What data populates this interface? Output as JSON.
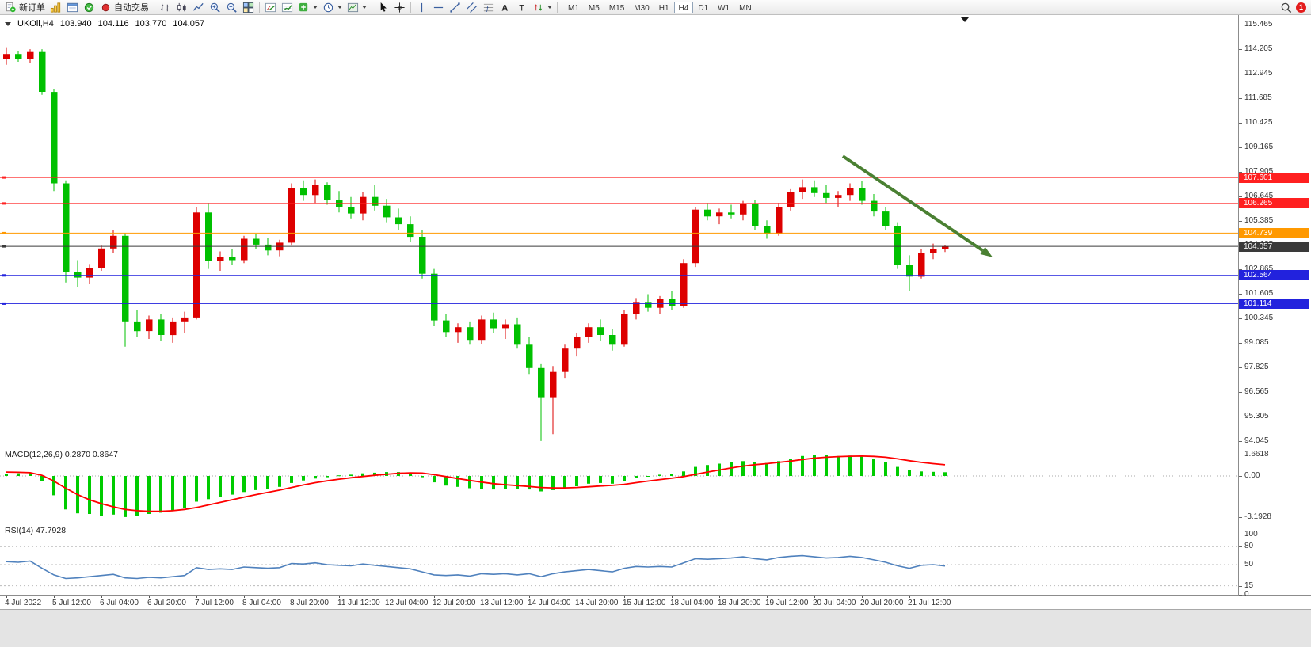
{
  "toolbar": {
    "new_order_label": "新订单",
    "auto_trading_label": "自动交易",
    "timeframes": [
      "M1",
      "M5",
      "M15",
      "M30",
      "H1",
      "H4",
      "D1",
      "W1",
      "MN"
    ],
    "active_timeframe": "H4",
    "notification_count": "1"
  },
  "chart": {
    "symbol_period": "UKOil,H4",
    "open": "103.940",
    "high": "104.116",
    "low": "103.770",
    "close": "104.057"
  },
  "chart_data": {
    "type": "candlestick",
    "title": "UKOil,H4",
    "colors": {
      "bull": "#dd0000",
      "bear": "#00c000",
      "macd_histogram": "#00cc00",
      "macd_signal": "#ff0000",
      "rsi_line": "#4f81bd"
    },
    "price_axis": {
      "min": 94.045,
      "max": 115.465,
      "labels": [
        "115.465",
        "114.205",
        "112.945",
        "111.685",
        "110.425",
        "109.165",
        "107.905",
        "106.645",
        "105.385",
        "104.125",
        "102.865",
        "101.605",
        "100.345",
        "99.085",
        "97.825",
        "96.565",
        "95.305",
        "94.045"
      ]
    },
    "time_labels": [
      "4 Jul 2022",
      "5 Jul 12:00",
      "6 Jul 04:00",
      "6 Jul 20:00",
      "7 Jul 12:00",
      "8 Jul 04:00",
      "8 Jul 20:00",
      "11 Jul 12:00",
      "12 Jul 04:00",
      "12 Jul 20:00",
      "13 Jul 12:00",
      "14 Jul 04:00",
      "14 Jul 20:00",
      "15 Jul 12:00",
      "18 Jul 04:00",
      "18 Jul 20:00",
      "19 Jul 12:00",
      "20 Jul 04:00",
      "20 Jul 20:00",
      "21 Jul 12:00"
    ],
    "candles": [
      [
        113.7,
        114.3,
        113.4,
        113.95
      ],
      [
        113.95,
        114.1,
        113.55,
        113.7
      ],
      [
        113.7,
        114.2,
        113.5,
        114.05
      ],
      [
        114.05,
        114.2,
        111.85,
        112.0
      ],
      [
        112.0,
        112.15,
        106.9,
        107.3
      ],
      [
        107.3,
        107.45,
        102.2,
        102.75
      ],
      [
        102.75,
        103.35,
        101.95,
        102.45
      ],
      [
        102.45,
        103.15,
        102.15,
        102.95
      ],
      [
        102.95,
        104.1,
        102.8,
        103.95
      ],
      [
        103.95,
        104.9,
        103.7,
        104.6
      ],
      [
        104.6,
        104.75,
        98.9,
        100.2
      ],
      [
        100.2,
        100.8,
        99.4,
        99.7
      ],
      [
        99.7,
        100.5,
        99.3,
        100.3
      ],
      [
        100.3,
        100.6,
        99.2,
        99.5
      ],
      [
        99.5,
        100.4,
        99.1,
        100.2
      ],
      [
        100.2,
        100.7,
        99.6,
        100.4
      ],
      [
        100.4,
        106.1,
        100.3,
        105.8
      ],
      [
        105.8,
        106.3,
        102.9,
        103.3
      ],
      [
        103.3,
        103.8,
        102.8,
        103.5
      ],
      [
        103.5,
        103.9,
        103.1,
        103.35
      ],
      [
        103.35,
        104.6,
        103.2,
        104.45
      ],
      [
        104.45,
        104.7,
        103.9,
        104.15
      ],
      [
        104.15,
        104.5,
        103.6,
        103.85
      ],
      [
        103.85,
        104.4,
        103.55,
        104.25
      ],
      [
        104.25,
        107.3,
        104.1,
        107.05
      ],
      [
        107.05,
        107.45,
        106.4,
        106.7
      ],
      [
        106.7,
        107.5,
        106.3,
        107.2
      ],
      [
        107.2,
        107.35,
        106.2,
        106.45
      ],
      [
        106.45,
        106.9,
        105.8,
        106.1
      ],
      [
        106.1,
        106.6,
        105.5,
        105.75
      ],
      [
        105.75,
        106.85,
        105.4,
        106.6
      ],
      [
        106.6,
        107.2,
        105.9,
        106.15
      ],
      [
        106.15,
        106.5,
        105.3,
        105.55
      ],
      [
        105.55,
        106.0,
        104.9,
        105.2
      ],
      [
        105.2,
        105.6,
        104.3,
        104.55
      ],
      [
        104.55,
        104.9,
        102.4,
        102.65
      ],
      [
        102.65,
        102.9,
        99.95,
        100.25
      ],
      [
        100.25,
        100.6,
        99.4,
        99.65
      ],
      [
        99.65,
        100.1,
        99.1,
        99.9
      ],
      [
        99.9,
        100.2,
        99.0,
        99.25
      ],
      [
        99.25,
        100.5,
        99.05,
        100.3
      ],
      [
        100.3,
        100.65,
        99.6,
        99.85
      ],
      [
        99.85,
        100.3,
        99.3,
        100.05
      ],
      [
        100.05,
        100.4,
        98.8,
        99.0
      ],
      [
        99.0,
        99.4,
        97.5,
        97.8
      ],
      [
        97.8,
        98.0,
        94.05,
        96.3
      ],
      [
        96.3,
        97.9,
        94.4,
        97.6
      ],
      [
        97.6,
        99.0,
        97.3,
        98.8
      ],
      [
        98.8,
        99.6,
        98.4,
        99.4
      ],
      [
        99.4,
        100.1,
        99.1,
        99.9
      ],
      [
        99.9,
        100.3,
        99.2,
        99.5
      ],
      [
        99.5,
        99.8,
        98.7,
        99.0
      ],
      [
        99.0,
        100.8,
        98.9,
        100.6
      ],
      [
        100.6,
        101.4,
        100.3,
        101.2
      ],
      [
        101.2,
        101.6,
        100.7,
        100.9
      ],
      [
        100.9,
        101.5,
        100.6,
        101.35
      ],
      [
        101.35,
        101.75,
        100.8,
        101.0
      ],
      [
        101.0,
        103.4,
        100.9,
        103.2
      ],
      [
        103.2,
        106.1,
        103.0,
        105.95
      ],
      [
        105.95,
        106.3,
        105.4,
        105.6
      ],
      [
        105.6,
        106.0,
        105.2,
        105.8
      ],
      [
        105.8,
        106.2,
        105.5,
        105.7
      ],
      [
        105.7,
        106.4,
        105.4,
        106.25
      ],
      [
        106.25,
        106.45,
        104.9,
        105.1
      ],
      [
        105.1,
        105.4,
        104.45,
        104.7
      ],
      [
        104.7,
        106.3,
        104.6,
        106.1
      ],
      [
        106.1,
        107.0,
        105.9,
        106.85
      ],
      [
        106.85,
        107.5,
        106.5,
        107.1
      ],
      [
        107.1,
        107.45,
        106.6,
        106.8
      ],
      [
        106.8,
        107.2,
        106.3,
        106.55
      ],
      [
        106.55,
        106.9,
        106.1,
        106.7
      ],
      [
        106.7,
        107.3,
        106.4,
        107.05
      ],
      [
        107.05,
        107.4,
        106.2,
        106.4
      ],
      [
        106.4,
        106.75,
        105.6,
        105.85
      ],
      [
        105.85,
        106.1,
        104.9,
        105.1
      ],
      [
        105.1,
        105.3,
        102.9,
        103.1
      ],
      [
        103.1,
        103.6,
        101.75,
        102.5
      ],
      [
        102.5,
        103.9,
        102.4,
        103.7
      ],
      [
        103.7,
        104.2,
        103.4,
        103.94
      ],
      [
        103.94,
        104.116,
        103.77,
        104.057
      ]
    ],
    "hlines": [
      {
        "price": 107.601,
        "color": "#ff2020",
        "label": "107.601"
      },
      {
        "price": 106.265,
        "color": "#ff2020",
        "label": "106.265"
      },
      {
        "price": 104.739,
        "color": "#ff9900",
        "label": "104.739"
      },
      {
        "price": 104.057,
        "color": "#3a3a3a",
        "label": "104.057"
      },
      {
        "price": 102.564,
        "color": "#2222dd",
        "label": "102.564"
      },
      {
        "price": 101.114,
        "color": "#2222dd",
        "label": "101.114"
      }
    ],
    "trend_arrow": {
      "from_candle": 70.4,
      "from_price": 108.7,
      "to_candle": 83.0,
      "to_price": 103.5,
      "color": "#4a8032"
    },
    "indicators": [
      {
        "name": "MACD",
        "header": "MACD(12,26,9) 0.2870 0.8647",
        "current_values": [
          0.287,
          0.8647
        ],
        "axis_values": [
          1.6618,
          0,
          -3.1928
        ],
        "axis_labels": [
          "1.6618",
          "0.00",
          "-3.1928"
        ],
        "histogram": [
          0.15,
          0.2,
          0.25,
          -0.4,
          -1.5,
          -2.6,
          -2.9,
          -2.95,
          -3.1,
          -3.0,
          -3.19,
          -3.1,
          -2.95,
          -2.85,
          -2.7,
          -2.5,
          -2.0,
          -1.8,
          -1.6,
          -1.45,
          -1.25,
          -1.1,
          -1.0,
          -0.85,
          -0.55,
          -0.35,
          -0.2,
          -0.1,
          0.05,
          0.1,
          0.2,
          0.25,
          0.3,
          0.3,
          0.2,
          -0.1,
          -0.5,
          -0.75,
          -0.85,
          -0.95,
          -1.0,
          -1.05,
          -1.0,
          -1.0,
          -1.05,
          -1.2,
          -1.1,
          -0.95,
          -0.8,
          -0.6,
          -0.55,
          -0.6,
          -0.4,
          -0.15,
          0.0,
          0.1,
          0.15,
          0.35,
          0.7,
          0.85,
          0.95,
          1.05,
          1.15,
          1.1,
          1.0,
          1.15,
          1.35,
          1.55,
          1.66,
          1.62,
          1.55,
          1.58,
          1.5,
          1.3,
          1.05,
          0.7,
          0.45,
          0.35,
          0.32,
          0.287
        ],
        "signal": [
          0.3,
          0.28,
          0.25,
          0.05,
          -0.4,
          -0.95,
          -1.45,
          -1.85,
          -2.15,
          -2.4,
          -2.6,
          -2.7,
          -2.75,
          -2.75,
          -2.7,
          -2.6,
          -2.45,
          -2.25,
          -2.05,
          -1.85,
          -1.65,
          -1.45,
          -1.28,
          -1.1,
          -0.9,
          -0.7,
          -0.52,
          -0.38,
          -0.25,
          -0.14,
          -0.04,
          0.05,
          0.13,
          0.2,
          0.24,
          0.22,
          0.1,
          -0.05,
          -0.2,
          -0.35,
          -0.48,
          -0.6,
          -0.68,
          -0.75,
          -0.82,
          -0.9,
          -0.93,
          -0.93,
          -0.9,
          -0.84,
          -0.78,
          -0.73,
          -0.65,
          -0.52,
          -0.4,
          -0.28,
          -0.18,
          -0.05,
          0.12,
          0.3,
          0.46,
          0.62,
          0.76,
          0.87,
          0.95,
          1.05,
          1.15,
          1.27,
          1.38,
          1.45,
          1.5,
          1.53,
          1.54,
          1.52,
          1.45,
          1.33,
          1.18,
          1.05,
          0.95,
          0.8647
        ]
      },
      {
        "name": "RSI",
        "header": "RSI(14) 47.7928",
        "current_value": 47.7928,
        "axis_values": [
          100,
          80,
          50,
          15,
          0
        ],
        "axis_labels": [
          "100",
          "80",
          "50",
          "15",
          "0"
        ],
        "levels": [
          80,
          50,
          15
        ],
        "values": [
          55,
          54,
          56,
          44,
          33,
          27,
          28,
          30,
          32,
          34,
          28,
          27,
          29,
          28,
          30,
          32,
          45,
          42,
          43,
          42,
          46,
          45,
          44,
          45,
          52,
          51,
          53,
          50,
          49,
          48,
          51,
          49,
          47,
          45,
          43,
          38,
          33,
          32,
          33,
          31,
          35,
          34,
          35,
          33,
          35,
          30,
          35,
          38,
          40,
          42,
          40,
          38,
          44,
          47,
          46,
          47,
          46,
          53,
          60,
          59,
          60,
          61,
          63,
          60,
          58,
          62,
          64,
          65,
          63,
          61,
          62,
          64,
          62,
          58,
          54,
          48,
          44,
          49,
          50,
          47.79
        ]
      }
    ]
  }
}
